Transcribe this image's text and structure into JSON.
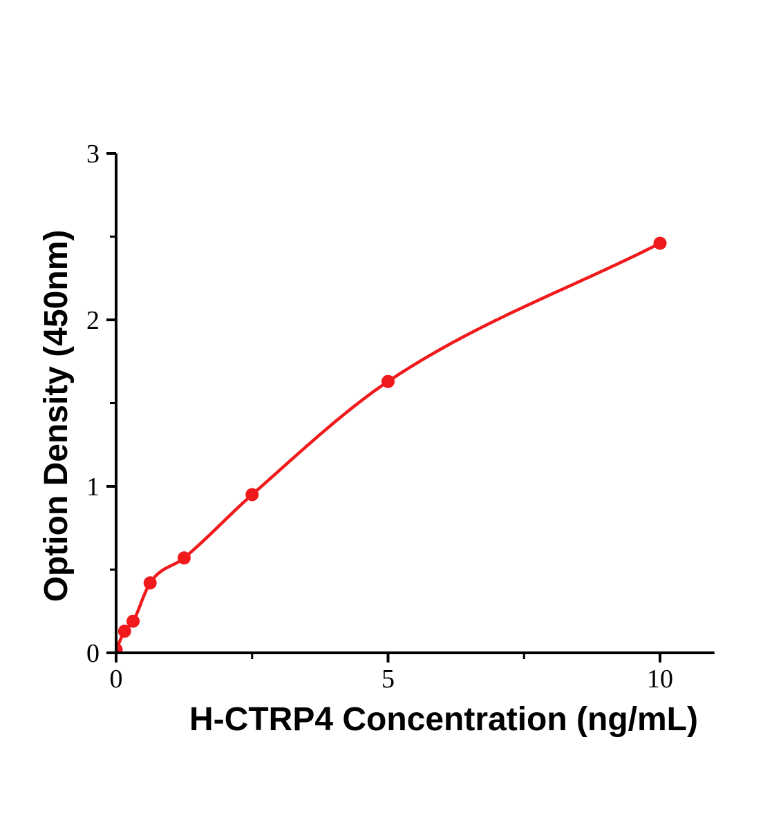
{
  "page": {
    "background": "#ffffff"
  },
  "chart_data": {
    "type": "scatter",
    "title": "",
    "xlabel": "H-CTRP4 Concentration (ng/mL)",
    "ylabel": "Option Density (450nm)",
    "x": [
      0,
      0.156,
      0.3125,
      0.625,
      1.25,
      2.5,
      5,
      10
    ],
    "y": [
      0.02,
      0.13,
      0.19,
      0.42,
      0.57,
      0.95,
      1.63,
      2.46
    ],
    "xlim": [
      0,
      11
    ],
    "ylim": [
      0,
      3
    ],
    "x_ticks": [
      0,
      5,
      10
    ],
    "y_ticks": [
      0,
      1,
      2,
      3
    ],
    "x_minor_ticks": [
      2.5,
      7.5
    ],
    "y_minor_ticks": [
      0.5,
      1.5,
      2.5
    ],
    "grid": false,
    "legend": false,
    "marker_color": "#f0191c",
    "line_color": "#f0191c",
    "axis_color": "#000000",
    "tick_label_color": "#000000"
  }
}
